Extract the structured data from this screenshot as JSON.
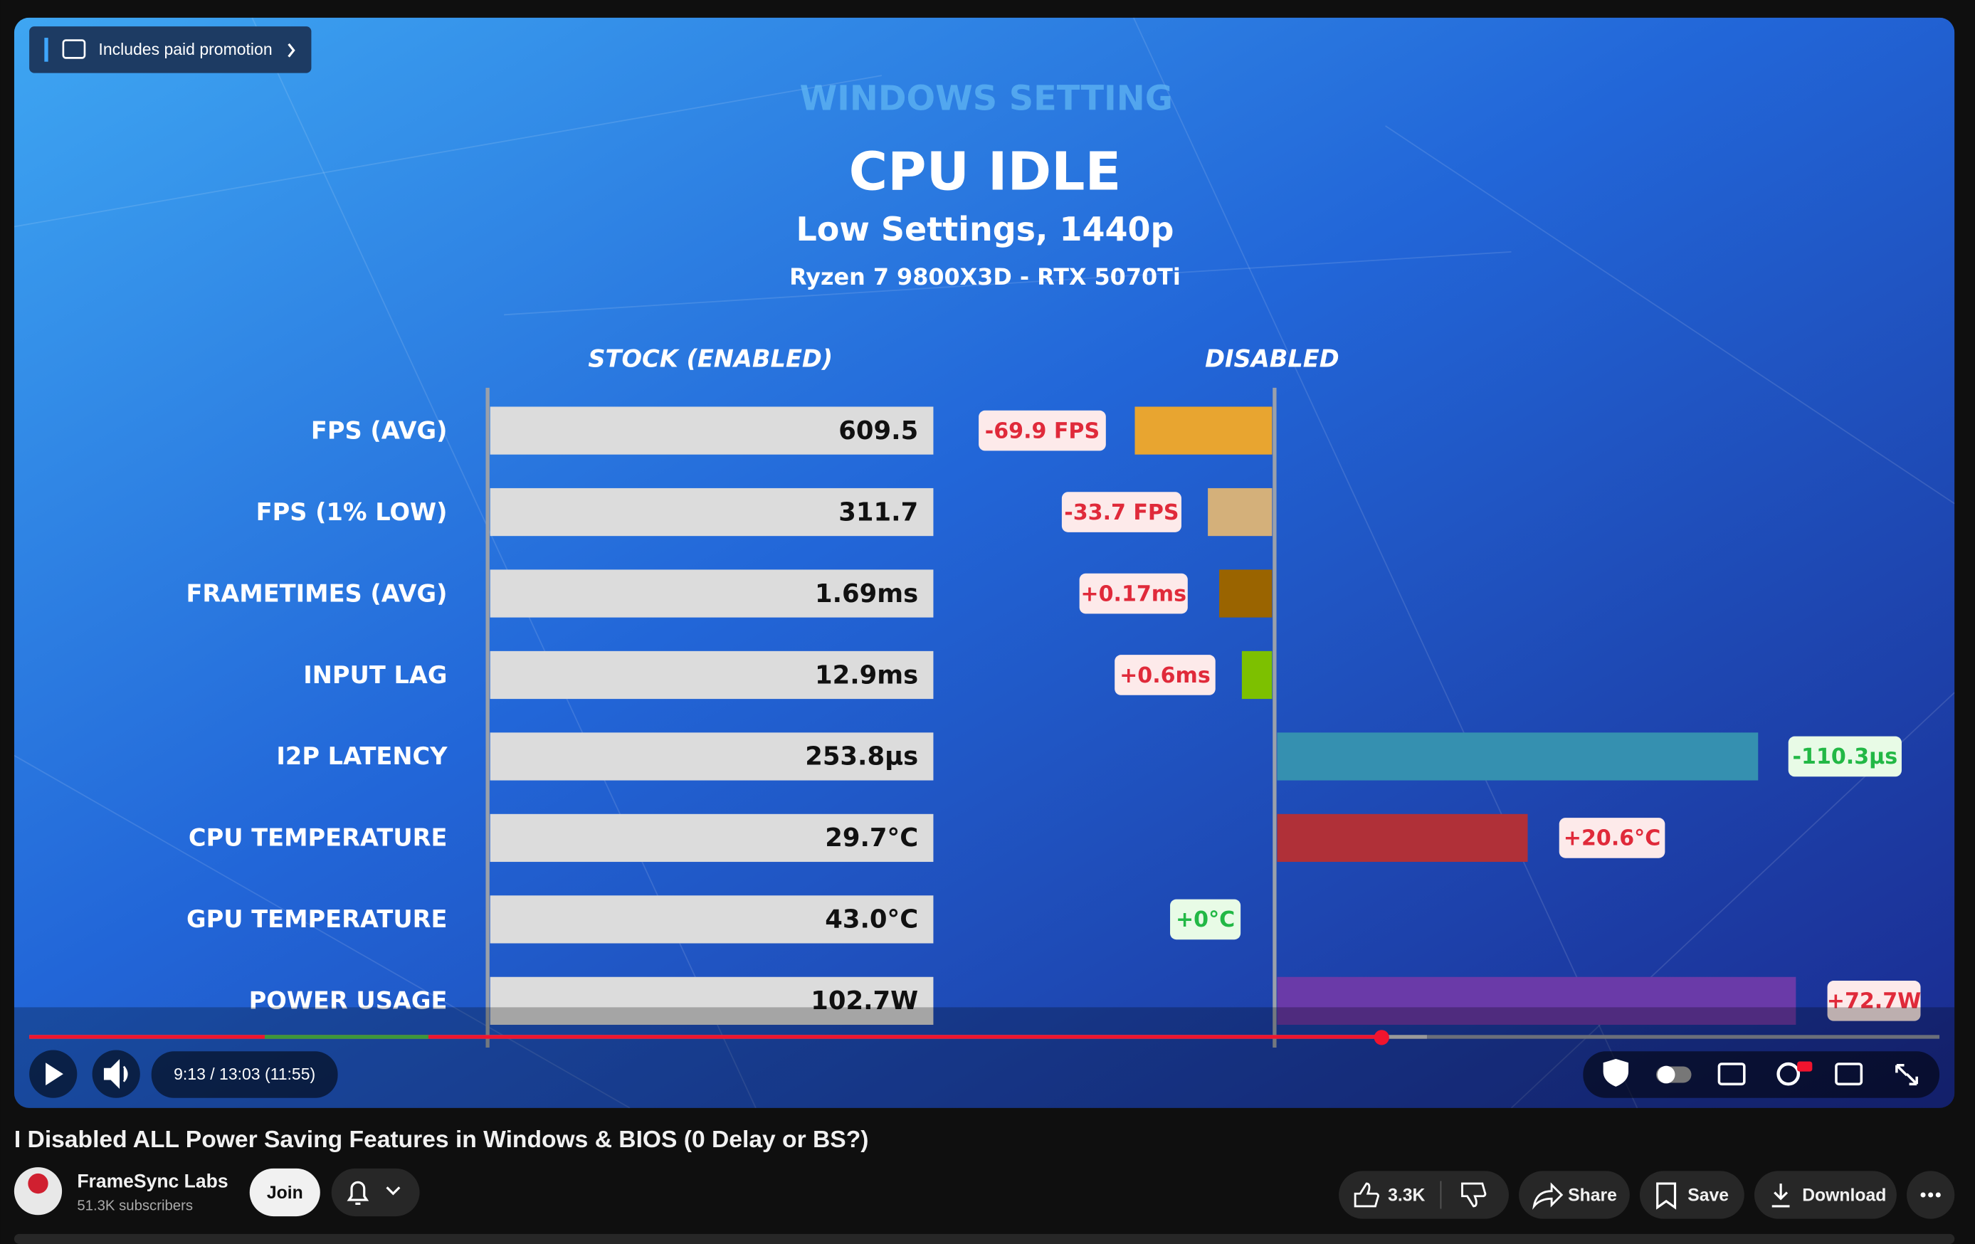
{
  "player": {
    "promotion": "Includes paid promotion",
    "time": "9:13 / 13:03 (11:55)"
  },
  "video_frame": {
    "kicker": "WINDOWS SETTING",
    "title": "CPU IDLE",
    "subtitle": "Low Settings, 1440p",
    "system": "Ryzen 7 9800X3D - RTX 5070Ti",
    "column_stock": "STOCK  (ENABLED)",
    "column_disabled": "DISABLED",
    "rows": [
      {
        "label": "FPS (AVG)",
        "stock": "609.5",
        "change": "-69.9 FPS"
      },
      {
        "label": "FPS (1% LOW)",
        "stock": "311.7",
        "change": "-33.7 FPS"
      },
      {
        "label": "FRAMETIMES (AVG)",
        "stock": "1.69ms",
        "change": "+0.17ms"
      },
      {
        "label": "INPUT LAG",
        "stock": "12.9ms",
        "change": "+0.6ms"
      },
      {
        "label": "I2P LATENCY",
        "stock": "253.8µs",
        "change": "-110.3µs"
      },
      {
        "label": "CPU TEMPERATURE",
        "stock": "29.7°C",
        "change": "+20.6°C"
      },
      {
        "label": "GPU TEMPERATURE",
        "stock": "43.0°C",
        "change": "+0°C"
      },
      {
        "label": "POWER USAGE",
        "stock": "102.7W",
        "change": "+72.7W"
      }
    ]
  },
  "video": {
    "title": "I Disabled ALL Power Saving Features in Windows & BIOS (0 Delay or BS?)",
    "channel": "FrameSync Labs",
    "subscribers": "51.3K subscribers",
    "join": "Join",
    "likes": "3.3K",
    "share": "Share",
    "save": "Save",
    "download": "Download"
  }
}
